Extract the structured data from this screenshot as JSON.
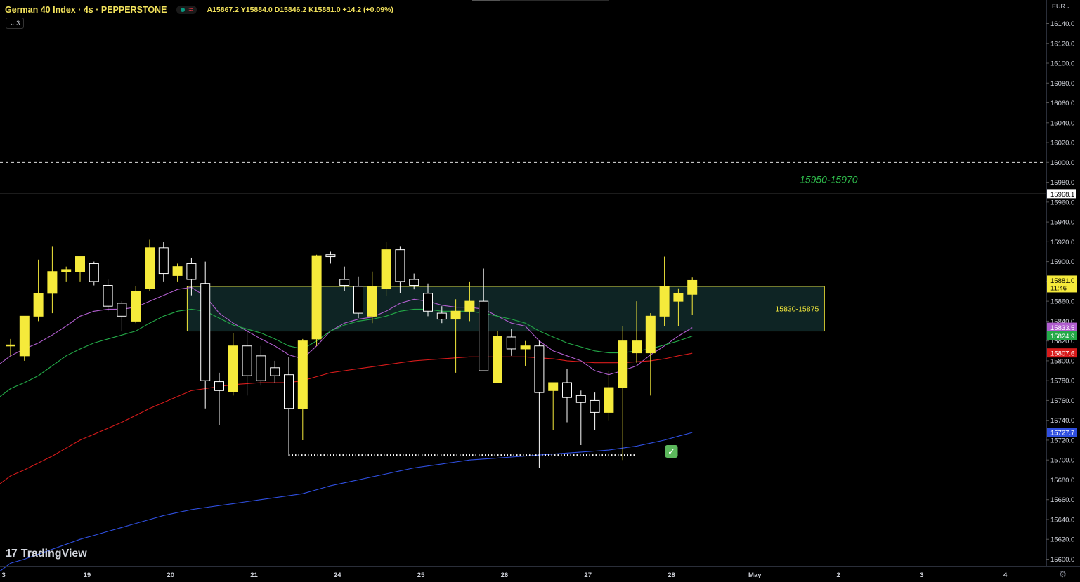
{
  "header": {
    "title": "German 40 Index · 4s · PEPPERSTONE",
    "ohlc": "A15867.2 Y15884.0 D15846.2 K15881.0 +14.2 (+0.09%)",
    "indicators_count": "3"
  },
  "currency": "EUR",
  "branding": "TradingView",
  "colors": {
    "bull": "#f5ea3b",
    "bear_fill": "#000000",
    "candle_outline": "#ffffff",
    "zone_fill": "#0e2424",
    "zone_border": "#f5ea3b",
    "ma_purple": "#b15ecf",
    "ma_green": "#23a847",
    "ma_red": "#d81b1b",
    "ma_blue": "#2f4fe0",
    "zone_label_green": "#2eb84a"
  },
  "chart_data": {
    "type": "candlestick",
    "title": "German 40 Index",
    "timeframe": "4s",
    "exchange": "PEPPERSTONE",
    "ylim": [
      15590,
      16150
    ],
    "y_ticks": [
      16140,
      16120,
      16100,
      16080,
      16060,
      16040,
      16020,
      16000,
      15980,
      15960,
      15940,
      15920,
      15900,
      15880,
      15860,
      15840,
      15820,
      15800,
      15780,
      15760,
      15740,
      15720,
      15700,
      15680,
      15660,
      15640,
      15620,
      15600
    ],
    "y_tick_labels": [
      "16140.0",
      "16120.0",
      "16100.0",
      "16080.0",
      "16060.0",
      "16040.0",
      "16020.0",
      "16000.0",
      "15980.0",
      "15960.0",
      "15940.0",
      "15920.0",
      "15900.0",
      "15880.0",
      "15860.0",
      "15840.0",
      "15820.0",
      "15800.0",
      "15780.0",
      "15760.0",
      "15740.0",
      "15720.0",
      "15700.0",
      "15680.0",
      "15660.0",
      "15640.0",
      "15620.0",
      "15600.0"
    ],
    "x_ticks": [
      {
        "bar": -0.5,
        "label": "3"
      },
      {
        "bar": 5.5,
        "label": "19"
      },
      {
        "bar": 11.5,
        "label": "20"
      },
      {
        "bar": 17.5,
        "label": "21"
      },
      {
        "bar": 23.5,
        "label": "24"
      },
      {
        "bar": 29.5,
        "label": "25"
      },
      {
        "bar": 35.5,
        "label": "26"
      },
      {
        "bar": 41.5,
        "label": "27"
      },
      {
        "bar": 47.5,
        "label": "28"
      },
      {
        "bar": 53.5,
        "label": "May"
      },
      {
        "bar": 59.5,
        "label": "2"
      },
      {
        "bar": 65.5,
        "label": "3"
      },
      {
        "bar": 71.5,
        "label": "4"
      }
    ],
    "bar_count_visible": 75,
    "candles": [
      {
        "o": 15815,
        "h": 15822,
        "l": 15805,
        "c": 15816
      },
      {
        "o": 15805,
        "h": 15845,
        "l": 15800,
        "c": 15845
      },
      {
        "o": 15845,
        "h": 15902,
        "l": 15840,
        "c": 15868
      },
      {
        "o": 15868,
        "h": 15915,
        "l": 15848,
        "c": 15890
      },
      {
        "o": 15890,
        "h": 15895,
        "l": 15880,
        "c": 15892
      },
      {
        "o": 15890,
        "h": 15905,
        "l": 15880,
        "c": 15905
      },
      {
        "o": 15898,
        "h": 15900,
        "l": 15876,
        "c": 15880
      },
      {
        "o": 15876,
        "h": 15882,
        "l": 15850,
        "c": 15855
      },
      {
        "o": 15858,
        "h": 15860,
        "l": 15830,
        "c": 15845
      },
      {
        "o": 15840,
        "h": 15875,
        "l": 15838,
        "c": 15870
      },
      {
        "o": 15873,
        "h": 15922,
        "l": 15870,
        "c": 15914
      },
      {
        "o": 15914,
        "h": 15920,
        "l": 15880,
        "c": 15888
      },
      {
        "o": 15886,
        "h": 15898,
        "l": 15880,
        "c": 15895
      },
      {
        "o": 15898,
        "h": 15904,
        "l": 15866,
        "c": 15882
      },
      {
        "o": 15878,
        "h": 15900,
        "l": 15752,
        "c": 15780
      },
      {
        "o": 15779,
        "h": 15788,
        "l": 15735,
        "c": 15770
      },
      {
        "o": 15769,
        "h": 15828,
        "l": 15765,
        "c": 15815
      },
      {
        "o": 15815,
        "h": 15830,
        "l": 15765,
        "c": 15785
      },
      {
        "o": 15805,
        "h": 15815,
        "l": 15775,
        "c": 15780
      },
      {
        "o": 15793,
        "h": 15800,
        "l": 15778,
        "c": 15785
      },
      {
        "o": 15786,
        "h": 15804,
        "l": 15704,
        "c": 15752
      },
      {
        "o": 15752,
        "h": 15822,
        "l": 15720,
        "c": 15820
      },
      {
        "o": 15822,
        "h": 15907,
        "l": 15815,
        "c": 15906
      },
      {
        "o": 15907,
        "h": 15910,
        "l": 15898,
        "c": 15905
      },
      {
        "o": 15882,
        "h": 15895,
        "l": 15870,
        "c": 15876
      },
      {
        "o": 15875,
        "h": 15885,
        "l": 15843,
        "c": 15848
      },
      {
        "o": 15845,
        "h": 15890,
        "l": 15838,
        "c": 15875
      },
      {
        "o": 15873,
        "h": 15920,
        "l": 15865,
        "c": 15912
      },
      {
        "o": 15912,
        "h": 15915,
        "l": 15868,
        "c": 15880
      },
      {
        "o": 15882,
        "h": 15888,
        "l": 15872,
        "c": 15876
      },
      {
        "o": 15868,
        "h": 15878,
        "l": 15845,
        "c": 15850
      },
      {
        "o": 15848,
        "h": 15855,
        "l": 15838,
        "c": 15842
      },
      {
        "o": 15842,
        "h": 15862,
        "l": 15788,
        "c": 15850
      },
      {
        "o": 15850,
        "h": 15880,
        "l": 15840,
        "c": 15860
      },
      {
        "o": 15860,
        "h": 15893,
        "l": 15790,
        "c": 15790
      },
      {
        "o": 15778,
        "h": 15830,
        "l": 15778,
        "c": 15825
      },
      {
        "o": 15824,
        "h": 15832,
        "l": 15805,
        "c": 15812
      },
      {
        "o": 15812,
        "h": 15820,
        "l": 15795,
        "c": 15815
      },
      {
        "o": 15815,
        "h": 15820,
        "l": 15692,
        "c": 15768
      },
      {
        "o": 15770,
        "h": 15778,
        "l": 15730,
        "c": 15778
      },
      {
        "o": 15778,
        "h": 15792,
        "l": 15738,
        "c": 15763
      },
      {
        "o": 15765,
        "h": 15770,
        "l": 15715,
        "c": 15758
      },
      {
        "o": 15760,
        "h": 15768,
        "l": 15730,
        "c": 15748
      },
      {
        "o": 15748,
        "h": 15790,
        "l": 15740,
        "c": 15773
      },
      {
        "o": 15773,
        "h": 15835,
        "l": 15700,
        "c": 15820
      },
      {
        "o": 15808,
        "h": 15860,
        "l": 15798,
        "c": 15820
      },
      {
        "o": 15808,
        "h": 15848,
        "l": 15765,
        "c": 15845
      },
      {
        "o": 15845,
        "h": 15905,
        "l": 15835,
        "c": 15875
      },
      {
        "o": 15860,
        "h": 15873,
        "l": 15835,
        "c": 15868
      },
      {
        "o": 15867,
        "h": 15884,
        "l": 15846,
        "c": 15881
      }
    ],
    "moving_averages": [
      {
        "color_key": "ma_purple",
        "last": 15833.5,
        "values": [
          15805,
          15812,
          15818,
          15826,
          15835,
          15845,
          15850,
          15852,
          15852,
          15854,
          15860,
          15866,
          15872,
          15874,
          15865,
          15848,
          15838,
          15830,
          15822,
          15815,
          15806,
          15802,
          15815,
          15830,
          15838,
          15842,
          15844,
          15850,
          15858,
          15862,
          15860,
          15856,
          15854,
          15854,
          15852,
          15845,
          15838,
          15835,
          15820,
          15810,
          15805,
          15800,
          15790,
          15786,
          15790,
          15795,
          15806,
          15815,
          15825,
          15833.5
        ]
      },
      {
        "color_key": "ma_green",
        "last": 15824.9,
        "values": [
          15772,
          15778,
          15785,
          15795,
          15805,
          15812,
          15818,
          15822,
          15826,
          15830,
          15838,
          15845,
          15850,
          15852,
          15850,
          15843,
          15836,
          15832,
          15828,
          15822,
          15815,
          15812,
          15820,
          15830,
          15836,
          15840,
          15842,
          15845,
          15850,
          15852,
          15852,
          15850,
          15850,
          15850,
          15848,
          15845,
          15842,
          15838,
          15830,
          15824,
          15818,
          15814,
          15810,
          15808,
          15808,
          15810,
          15812,
          15816,
          15820,
          15824.9
        ]
      },
      {
        "color_key": "ma_red",
        "last": 15807.6,
        "values": [
          15684,
          15690,
          15697,
          15704,
          15712,
          15720,
          15726,
          15732,
          15738,
          15745,
          15752,
          15758,
          15764,
          15770,
          15772,
          15774,
          15776,
          15777,
          15778,
          15778,
          15778,
          15780,
          15784,
          15788,
          15790,
          15792,
          15794,
          15796,
          15798,
          15800,
          15801,
          15802,
          15803,
          15804,
          15804,
          15804,
          15804,
          15804,
          15803,
          15802,
          15800,
          15799,
          15798,
          15798,
          15798,
          15799,
          15800,
          15802,
          15805,
          15807.6
        ]
      },
      {
        "color_key": "ma_blue",
        "last": 15727.7,
        "values": [
          15596,
          15600,
          15605,
          15610,
          15615,
          15620,
          15624,
          15628,
          15632,
          15636,
          15640,
          15644,
          15647,
          15650,
          15652,
          15654,
          15656,
          15658,
          15660,
          15662,
          15664,
          15666,
          15670,
          15674,
          15677,
          15680,
          15683,
          15686,
          15689,
          15692,
          15694,
          15696,
          15698,
          15700,
          15701,
          15702,
          15703,
          15704,
          15705,
          15706,
          15707,
          15708,
          15709,
          15710,
          15712,
          15714,
          15717,
          15720,
          15724,
          15727.7
        ]
      }
    ],
    "horizontal_lines": [
      {
        "price": 16000,
        "style": "dashed"
      },
      {
        "price": 15968.1,
        "style": "solid",
        "label": "15968.1"
      }
    ],
    "zone": {
      "from_bar": 13,
      "to_bar": 58.5,
      "low": 15830,
      "high": 15875,
      "label": "15830-15875"
    },
    "target_label": {
      "text": "15950-15970",
      "bar": 58.5,
      "price": 15982
    },
    "dotted_support": {
      "from_bar": 20,
      "to_bar": 45,
      "price": 15705
    },
    "check_mark": {
      "text": "✅",
      "bar": 47.5,
      "price": 15703
    },
    "price_labels": [
      {
        "price": 15881.0,
        "text": "15881.0",
        "sub": "11:46",
        "color_key": "bull"
      },
      {
        "price": 15833.5,
        "text": "15833.5",
        "color_key": "ma_purple"
      },
      {
        "price": 15824.9,
        "text": "15824.9",
        "color_key": "ma_green"
      },
      {
        "price": 15807.6,
        "text": "15807.6",
        "color_key": "ma_red"
      },
      {
        "price": 15727.7,
        "text": "15727.7",
        "color_key": "ma_blue"
      }
    ]
  }
}
